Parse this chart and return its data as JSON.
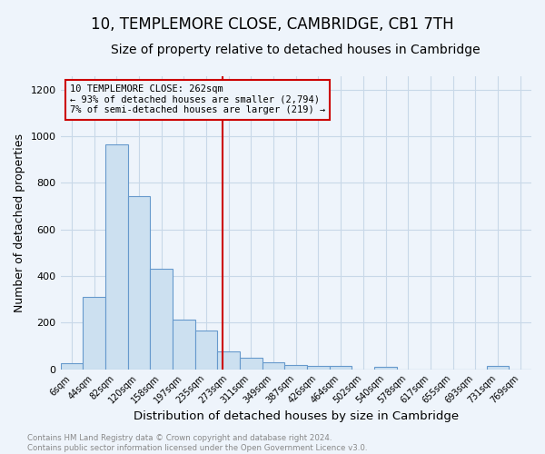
{
  "title": "10, TEMPLEMORE CLOSE, CAMBRIDGE, CB1 7TH",
  "subtitle": "Size of property relative to detached houses in Cambridge",
  "xlabel": "Distribution of detached houses by size in Cambridge",
  "ylabel": "Number of detached properties",
  "bar_labels": [
    "6sqm",
    "44sqm",
    "82sqm",
    "120sqm",
    "158sqm",
    "197sqm",
    "235sqm",
    "273sqm",
    "311sqm",
    "349sqm",
    "387sqm",
    "426sqm",
    "464sqm",
    "502sqm",
    "540sqm",
    "578sqm",
    "617sqm",
    "655sqm",
    "693sqm",
    "731sqm",
    "769sqm"
  ],
  "bar_values": [
    25,
    310,
    965,
    745,
    430,
    215,
    165,
    75,
    50,
    30,
    20,
    15,
    15,
    0,
    12,
    0,
    0,
    0,
    0,
    15,
    0
  ],
  "bar_color": "#cce0f0",
  "bar_edge_color": "#6699cc",
  "grid_color": "#c8d8e8",
  "background_color": "#eef4fb",
  "red_line_x": 6.71,
  "annotation_text_line1": "10 TEMPLEMORE CLOSE: 262sqm",
  "annotation_text_line2": "← 93% of detached houses are smaller (2,794)",
  "annotation_text_line3": "7% of semi-detached houses are larger (219) →",
  "annotation_box_edge_color": "#cc0000",
  "footer_text": "Contains HM Land Registry data © Crown copyright and database right 2024.\nContains public sector information licensed under the Open Government Licence v3.0.",
  "ylim": [
    0,
    1260
  ],
  "yticks": [
    0,
    200,
    400,
    600,
    800,
    1000,
    1200
  ],
  "title_fontsize": 12,
  "subtitle_fontsize": 10,
  "xlabel_fontsize": 9.5,
  "ylabel_fontsize": 9
}
